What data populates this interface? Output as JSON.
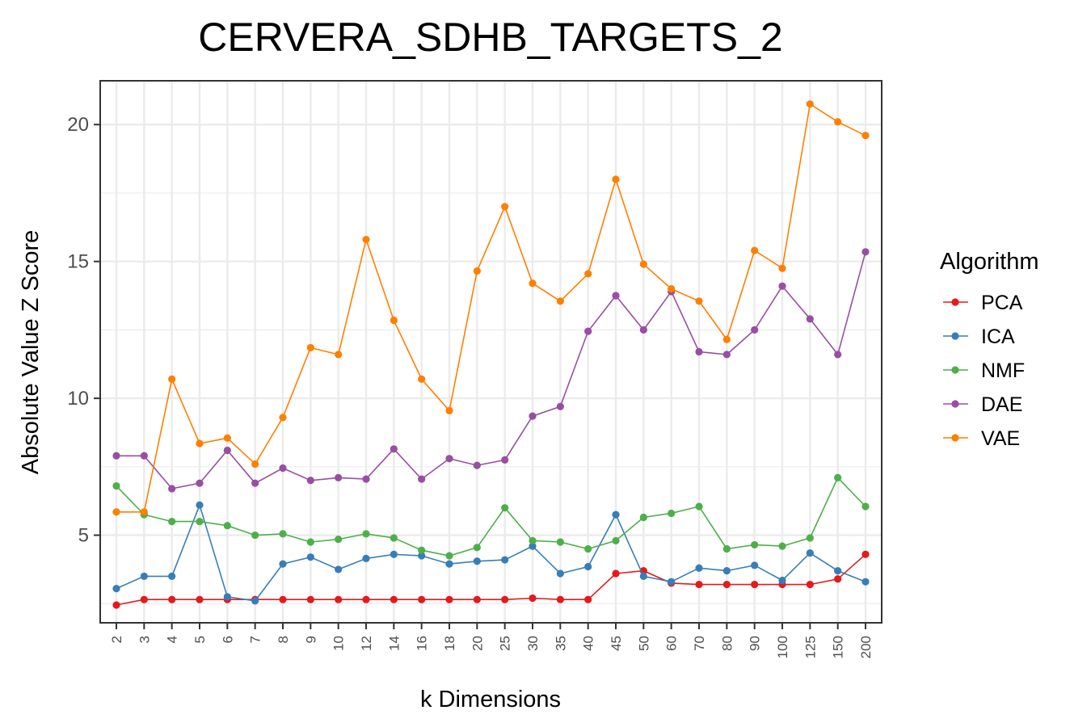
{
  "chart_data": {
    "type": "line",
    "title": "CERVERA_SDHB_TARGETS_2",
    "xlabel": "k Dimensions",
    "ylabel": "Absolute Value Z Score",
    "categories": [
      "2",
      "3",
      "4",
      "5",
      "6",
      "7",
      "8",
      "9",
      "10",
      "12",
      "14",
      "16",
      "18",
      "20",
      "25",
      "30",
      "35",
      "40",
      "45",
      "50",
      "60",
      "70",
      "80",
      "90",
      "100",
      "125",
      "150",
      "200"
    ],
    "y_ticks": [
      5,
      10,
      15,
      20
    ],
    "ylim": [
      1.8,
      21.6
    ],
    "grid": true,
    "legend": {
      "title": "Algorithm",
      "position": "right"
    },
    "series": [
      {
        "name": "PCA",
        "color": "#e41a1c",
        "values": [
          2.45,
          2.65,
          2.65,
          2.65,
          2.65,
          2.65,
          2.65,
          2.65,
          2.65,
          2.65,
          2.65,
          2.65,
          2.65,
          2.65,
          2.65,
          2.7,
          2.65,
          2.65,
          3.6,
          3.7,
          3.25,
          3.2,
          3.2,
          3.2,
          3.2,
          3.2,
          3.4,
          4.3
        ]
      },
      {
        "name": "ICA",
        "color": "#377eb8",
        "values": [
          3.05,
          3.5,
          3.5,
          6.1,
          2.75,
          2.6,
          3.95,
          4.2,
          3.75,
          4.15,
          4.3,
          4.25,
          3.95,
          4.05,
          4.1,
          4.6,
          3.6,
          3.85,
          5.75,
          3.5,
          3.3,
          3.8,
          3.7,
          3.9,
          3.35,
          4.35,
          3.7,
          3.3
        ]
      },
      {
        "name": "NMF",
        "color": "#4daf4a",
        "values": [
          6.8,
          5.75,
          5.5,
          5.5,
          5.35,
          5.0,
          5.05,
          4.75,
          4.85,
          5.05,
          4.9,
          4.45,
          4.25,
          4.55,
          6.0,
          4.8,
          4.75,
          4.5,
          4.8,
          5.65,
          5.8,
          6.05,
          4.5,
          4.65,
          4.6,
          4.9,
          7.1,
          6.05
        ]
      },
      {
        "name": "DAE",
        "color": "#984ea3",
        "values": [
          7.9,
          7.9,
          6.7,
          6.9,
          8.1,
          6.9,
          7.45,
          7.0,
          7.1,
          7.05,
          8.15,
          7.05,
          7.8,
          7.55,
          7.75,
          9.35,
          9.7,
          12.45,
          13.75,
          12.5,
          13.9,
          11.7,
          11.6,
          12.5,
          14.1,
          12.9,
          11.6,
          15.35
        ]
      },
      {
        "name": "VAE",
        "color": "#ff7f00",
        "values": [
          5.85,
          5.85,
          10.7,
          8.35,
          8.55,
          7.6,
          9.3,
          11.85,
          11.6,
          15.8,
          12.85,
          10.7,
          9.55,
          14.65,
          17.0,
          14.2,
          13.55,
          14.55,
          18.0,
          14.9,
          14.0,
          13.55,
          12.15,
          15.4,
          14.75,
          20.75,
          20.1,
          19.6
        ]
      }
    ]
  }
}
